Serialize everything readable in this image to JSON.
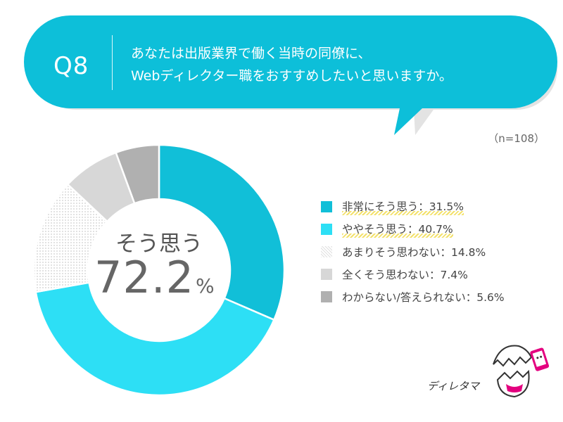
{
  "question": {
    "number": "Q8",
    "line1": "あなたは出版業界で働く当時の同僚に、",
    "line2": "Webディレクター職をおすすめしたいと思いますか。",
    "sample": "（n=108）"
  },
  "center": {
    "label": "そう思う",
    "value": "72.2",
    "unit": "%"
  },
  "logo": {
    "text": "ディレタマ"
  },
  "colors": {
    "bubble": "#0dbfd9",
    "bubble_shadow": "#e3e3e3",
    "highlight": "#f3e16b"
  },
  "chart_data": {
    "type": "pie",
    "donut": true,
    "n": 108,
    "legend_position": "right",
    "series": [
      {
        "name": "非常にそう思う",
        "value": 31.5,
        "label": "非常にそう思う：31.5%",
        "color": "#11bfd8",
        "pattern": "solid",
        "highlight": true
      },
      {
        "name": "ややそう思う",
        "value": 40.7,
        "label": "ややそう思う：40.7%",
        "color": "#2ddff5",
        "pattern": "solid",
        "highlight": true
      },
      {
        "name": "あまりそう思わない",
        "value": 14.8,
        "label": "あまりそう思わない：14.8%",
        "color": "#f2f2f2",
        "pattern": "dotted",
        "highlight": false
      },
      {
        "name": "全くそう思わない",
        "value": 7.4,
        "label": "全くそう思わない：7.4%",
        "color": "#d7d7d7",
        "pattern": "solid",
        "highlight": false
      },
      {
        "name": "わからない/答えられない",
        "value": 5.6,
        "label": "わからない/答えられない：5.6%",
        "color": "#b0b0b0",
        "pattern": "solid",
        "highlight": false
      }
    ]
  }
}
